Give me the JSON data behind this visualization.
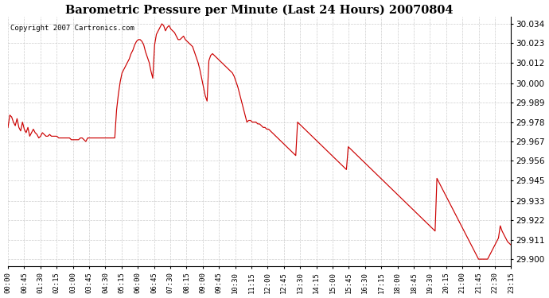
{
  "title": "Barometric Pressure per Minute (Last 24 Hours) 20070804",
  "copyright": "Copyright 2007 Cartronics.com",
  "line_color": "#cc0000",
  "background_color": "#ffffff",
  "plot_bg_color": "#ffffff",
  "grid_color": "#c8c8c8",
  "y_ticks": [
    29.9,
    29.911,
    29.922,
    29.933,
    29.945,
    29.956,
    29.967,
    29.978,
    29.989,
    30.0,
    30.012,
    30.023,
    30.034
  ],
  "ylim": [
    29.896,
    30.038
  ],
  "x_tick_labels": [
    "00:00",
    "00:45",
    "01:30",
    "02:15",
    "03:00",
    "03:45",
    "04:30",
    "05:15",
    "06:00",
    "06:45",
    "07:30",
    "08:15",
    "09:00",
    "09:45",
    "10:30",
    "11:15",
    "12:00",
    "12:45",
    "13:30",
    "14:15",
    "15:00",
    "15:45",
    "16:30",
    "17:15",
    "18:00",
    "18:45",
    "19:30",
    "20:15",
    "21:00",
    "21:45",
    "22:30",
    "23:15"
  ],
  "pressure_data": [
    29.975,
    29.982,
    29.981,
    29.978,
    29.976,
    29.98,
    29.975,
    29.973,
    29.978,
    29.974,
    29.972,
    29.975,
    29.97,
    29.972,
    29.974,
    29.972,
    29.971,
    29.969,
    29.97,
    29.972,
    29.971,
    29.97,
    29.97,
    29.971,
    29.97,
    29.97,
    29.97,
    29.97,
    29.969,
    29.969,
    29.969,
    29.969,
    29.969,
    29.969,
    29.969,
    29.968,
    29.968,
    29.968,
    29.968,
    29.968,
    29.969,
    29.969,
    29.968,
    29.967,
    29.969,
    29.969,
    29.969,
    29.969,
    29.969,
    29.969,
    29.969,
    29.969,
    29.969,
    29.969,
    29.969,
    29.969,
    29.969,
    29.969,
    29.969,
    29.969,
    29.985,
    29.994,
    30.001,
    30.006,
    30.008,
    30.01,
    30.012,
    30.014,
    30.017,
    30.019,
    30.022,
    30.024,
    30.025,
    30.025,
    30.024,
    30.022,
    30.018,
    30.015,
    30.012,
    30.007,
    30.003,
    30.022,
    30.028,
    30.03,
    30.032,
    30.034,
    30.033,
    30.03,
    30.032,
    30.033,
    30.031,
    30.03,
    30.029,
    30.027,
    30.025,
    30.025,
    30.026,
    30.027,
    30.025,
    30.024,
    30.023,
    30.022,
    30.021,
    30.018,
    30.015,
    30.012,
    30.008,
    30.003,
    29.998,
    29.993,
    29.99,
    30.013,
    30.016,
    30.017,
    30.016,
    30.015,
    30.014,
    30.013,
    30.012,
    30.011,
    30.01,
    30.009,
    30.008,
    30.007,
    30.006,
    30.004,
    30.001,
    29.998,
    29.994,
    29.99,
    29.986,
    29.982,
    29.978,
    29.979,
    29.979,
    29.978,
    29.978,
    29.978,
    29.977,
    29.977,
    29.976,
    29.975,
    29.975,
    29.974,
    29.974,
    29.973,
    29.972,
    29.971,
    29.97,
    29.969,
    29.968,
    29.967,
    29.966,
    29.965,
    29.964,
    29.963,
    29.962,
    29.961,
    29.96,
    29.959,
    29.978,
    29.977,
    29.976,
    29.975,
    29.974,
    29.973,
    29.972,
    29.971,
    29.97,
    29.969,
    29.968,
    29.967,
    29.966,
    29.965,
    29.964,
    29.963,
    29.962,
    29.961,
    29.96,
    29.959,
    29.958,
    29.957,
    29.956,
    29.955,
    29.954,
    29.953,
    29.952,
    29.951,
    29.964,
    29.963,
    29.962,
    29.961,
    29.96,
    29.959,
    29.958,
    29.957,
    29.956,
    29.955,
    29.954,
    29.953,
    29.952,
    29.951,
    29.95,
    29.949,
    29.948,
    29.947,
    29.946,
    29.945,
    29.944,
    29.943,
    29.942,
    29.941,
    29.94,
    29.939,
    29.938,
    29.937,
    29.936,
    29.935,
    29.934,
    29.933,
    29.932,
    29.931,
    29.93,
    29.929,
    29.928,
    29.927,
    29.926,
    29.925,
    29.924,
    29.923,
    29.922,
    29.921,
    29.92,
    29.919,
    29.918,
    29.917,
    29.916,
    29.946,
    29.944,
    29.942,
    29.94,
    29.938,
    29.936,
    29.934,
    29.932,
    29.93,
    29.928,
    29.926,
    29.924,
    29.922,
    29.92,
    29.918,
    29.916,
    29.914,
    29.912,
    29.91,
    29.908,
    29.906,
    29.904,
    29.902,
    29.9,
    29.9,
    29.9,
    29.9,
    29.9,
    29.9,
    29.902,
    29.904,
    29.906,
    29.908,
    29.91,
    29.912,
    29.919,
    29.916,
    29.914,
    29.912,
    29.91,
    29.909,
    29.908
  ]
}
